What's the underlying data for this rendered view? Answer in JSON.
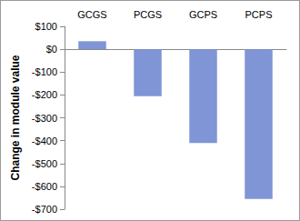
{
  "chart_data": {
    "type": "bar",
    "y_label": "Change in module value",
    "categories": [
      "GCGS",
      "PCGS",
      "GCPS",
      "PCPS"
    ],
    "values": [
      35,
      -205,
      -410,
      -655
    ],
    "color": "#7f95d6",
    "ylim": [
      -700,
      100
    ],
    "yticks": [
      {
        "value": -700,
        "label": "-$700"
      },
      {
        "value": -600,
        "label": "-$600"
      },
      {
        "value": -500,
        "label": "-$500"
      },
      {
        "value": -400,
        "label": "-$400"
      },
      {
        "value": -300,
        "label": "-$300"
      },
      {
        "value": -200,
        "label": "-$200"
      },
      {
        "value": -100,
        "label": "-$100"
      },
      {
        "value": 0,
        "label": "$0"
      },
      {
        "value": 100,
        "label": "$100"
      }
    ],
    "grid": false
  }
}
